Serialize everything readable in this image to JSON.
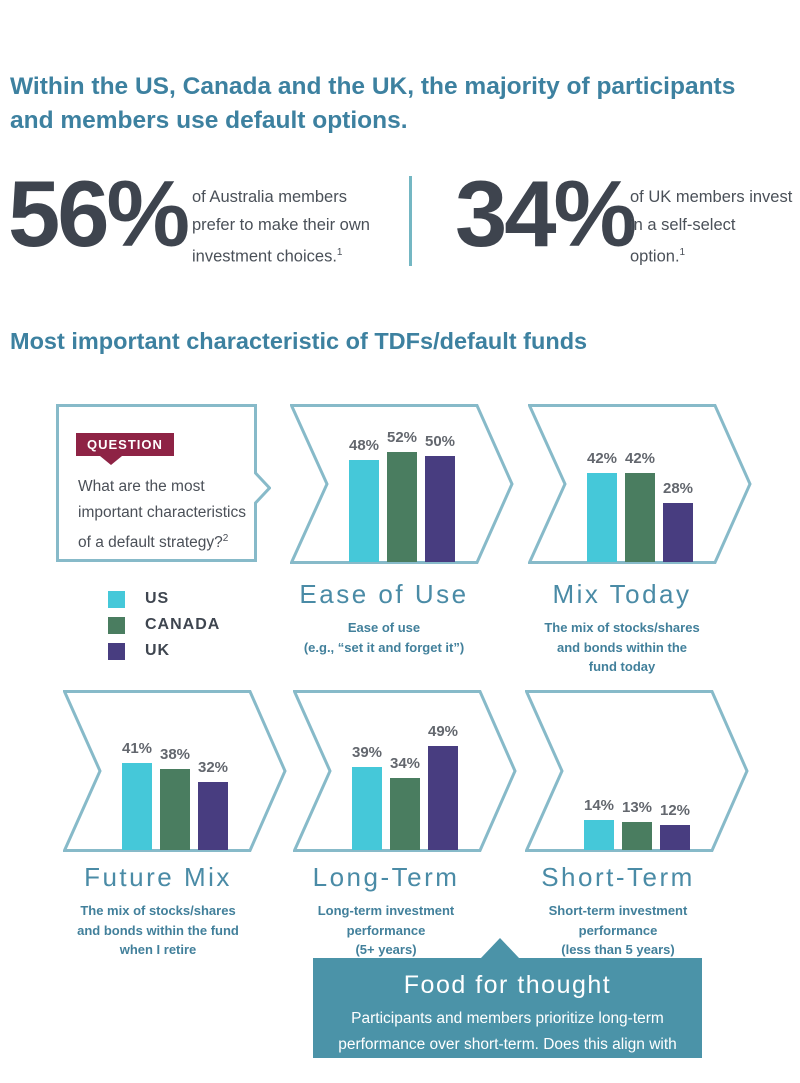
{
  "colors": {
    "us": "#45c8d9",
    "canada": "#4a7d60",
    "uk": "#483d80",
    "panel_outline": "#87bac9",
    "heading_teal": "#3d81a0",
    "caption_teal": "#4a8ba6",
    "badge_maroon": "#8e2345",
    "stat_dark": "#3e444e",
    "food_box_teal": "#4b93a8",
    "divider_teal": "#74b7c3"
  },
  "header": {
    "title": "Within the US, Canada and the UK, the majority of participants and members use default options."
  },
  "stats": [
    {
      "value": "56%",
      "description": "of Australia members prefer to make their own investment choices.",
      "footnote": "1"
    },
    {
      "value": "34%",
      "description": "of UK members invest in a self-select option.",
      "footnote": "1"
    }
  ],
  "section_title": "Most important characteristic of TDFs/default funds",
  "question": {
    "badge": "QUESTION",
    "lines": [
      "What are the most",
      "important characteristics",
      "of a default strategy?"
    ],
    "footnote": "2"
  },
  "legend": [
    {
      "label": "US",
      "color": "#45c8d9"
    },
    {
      "label": "CANADA",
      "color": "#4a7d60"
    },
    {
      "label": "UK",
      "color": "#483d80"
    }
  ],
  "chart_data": {
    "type": "bar",
    "unit": "%",
    "series_names": [
      "US",
      "CANADA",
      "UK"
    ],
    "series_colors": [
      "#45c8d9",
      "#4a7d60",
      "#483d80"
    ],
    "ylim": [
      0,
      60
    ],
    "legend_position": "left",
    "charts": [
      {
        "title": "Ease of Use",
        "subtitle": "Ease of use (e.g., “set it and forget it”)",
        "subtitle_lines": [
          "Ease of use",
          "(e.g., “set it and forget it”)"
        ],
        "values": [
          48,
          52,
          50
        ]
      },
      {
        "title": "Mix Today",
        "subtitle": "The mix of stocks/shares and bonds within the fund today",
        "subtitle_lines": [
          "The mix of stocks/shares",
          "and bonds within the",
          "fund today"
        ],
        "values": [
          42,
          42,
          28
        ]
      },
      {
        "title": "Future Mix",
        "subtitle": "The mix of stocks/shares and bonds within the fund when I retire",
        "subtitle_lines": [
          "The mix of stocks/shares",
          "and bonds within the fund",
          "when I retire"
        ],
        "values": [
          41,
          38,
          32
        ]
      },
      {
        "title": "Long-Term",
        "subtitle": "Long-term investment performance (5+ years)",
        "subtitle_lines": [
          "Long-term investment",
          "performance",
          "(5+ years)"
        ],
        "values": [
          39,
          34,
          49
        ]
      },
      {
        "title": "Short-Term",
        "subtitle": "Short-term investment performance (less than 5 years)",
        "subtitle_lines": [
          "Short-term investment",
          "performance",
          "(less than 5 years)"
        ],
        "values": [
          14,
          13,
          12
        ]
      }
    ]
  },
  "food_for_thought": {
    "title": "Food for thought",
    "body": "Participants and members prioritize long-term performance over short-term. Does this align with monitoring processes?"
  }
}
